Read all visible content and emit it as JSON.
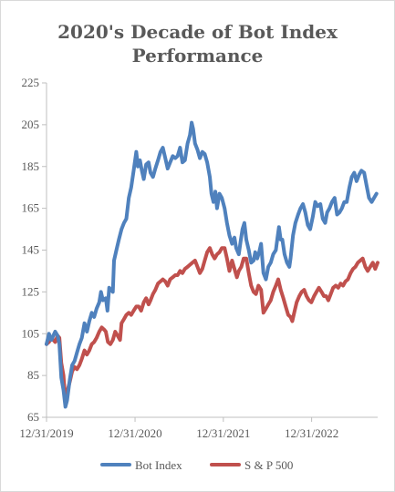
{
  "chart_data": {
    "type": "line",
    "title_line1": "2020's Decade of Bot Index",
    "title_line2": "Performance",
    "xlabel": "",
    "ylabel": "",
    "ylim": [
      65,
      225
    ],
    "yticks": [
      65,
      85,
      105,
      125,
      145,
      165,
      185,
      205,
      225
    ],
    "x_tick_labels": [
      "12/31/2019",
      "12/31/2020",
      "12/31/2021",
      "12/31/2022"
    ],
    "x_tick_dates": [
      "2019-12-31",
      "2020-12-31",
      "2021-12-31",
      "2022-12-31"
    ],
    "x_range": [
      "2019-12-31",
      "2023-09-30"
    ],
    "legend_position": "bottom",
    "grid": false,
    "series": [
      {
        "name": "Bot Index",
        "color": "#4f81bd",
        "points": [
          [
            "2019-12-31",
            100
          ],
          [
            "2020-01-10",
            105
          ],
          [
            "2020-01-20",
            102
          ],
          [
            "2020-02-05",
            106
          ],
          [
            "2020-02-15",
            104
          ],
          [
            "2020-02-22",
            100
          ],
          [
            "2020-03-01",
            84
          ],
          [
            "2020-03-10",
            78
          ],
          [
            "2020-03-18",
            70
          ],
          [
            "2020-03-25",
            73
          ],
          [
            "2020-04-05",
            83
          ],
          [
            "2020-04-15",
            90
          ],
          [
            "2020-04-25",
            92
          ],
          [
            "2020-05-05",
            96
          ],
          [
            "2020-05-15",
            100
          ],
          [
            "2020-05-25",
            103
          ],
          [
            "2020-06-05",
            110
          ],
          [
            "2020-06-15",
            106
          ],
          [
            "2020-06-25",
            111
          ],
          [
            "2020-07-05",
            115
          ],
          [
            "2020-07-15",
            113
          ],
          [
            "2020-07-25",
            117
          ],
          [
            "2020-08-05",
            120
          ],
          [
            "2020-08-12",
            125
          ],
          [
            "2020-08-20",
            121
          ],
          [
            "2020-09-01",
            122
          ],
          [
            "2020-09-08",
            116
          ],
          [
            "2020-09-15",
            127
          ],
          [
            "2020-09-22",
            126
          ],
          [
            "2020-09-30",
            125
          ],
          [
            "2020-10-05",
            140
          ],
          [
            "2020-10-15",
            145
          ],
          [
            "2020-10-25",
            150
          ],
          [
            "2020-11-05",
            155
          ],
          [
            "2020-11-15",
            158
          ],
          [
            "2020-11-25",
            160
          ],
          [
            "2020-12-05",
            170
          ],
          [
            "2020-12-15",
            175
          ],
          [
            "2020-12-25",
            183
          ],
          [
            "2021-01-05",
            192
          ],
          [
            "2021-01-12",
            185
          ],
          [
            "2021-01-20",
            188
          ],
          [
            "2021-01-28",
            183
          ],
          [
            "2021-02-05",
            179
          ],
          [
            "2021-02-15",
            186
          ],
          [
            "2021-02-25",
            187
          ],
          [
            "2021-03-05",
            182
          ],
          [
            "2021-03-15",
            180
          ],
          [
            "2021-03-25",
            184
          ],
          [
            "2021-04-05",
            188
          ],
          [
            "2021-04-15",
            192
          ],
          [
            "2021-04-25",
            194
          ],
          [
            "2021-05-05",
            189
          ],
          [
            "2021-05-15",
            184
          ],
          [
            "2021-05-25",
            187
          ],
          [
            "2021-06-05",
            190
          ],
          [
            "2021-06-15",
            189
          ],
          [
            "2021-06-25",
            190
          ],
          [
            "2021-07-05",
            194
          ],
          [
            "2021-07-15",
            187
          ],
          [
            "2021-07-25",
            188
          ],
          [
            "2021-08-05",
            196
          ],
          [
            "2021-08-15",
            200
          ],
          [
            "2021-08-22",
            206
          ],
          [
            "2021-08-28",
            203
          ],
          [
            "2021-09-05",
            196
          ],
          [
            "2021-09-15",
            193
          ],
          [
            "2021-09-25",
            189
          ],
          [
            "2021-10-05",
            192
          ],
          [
            "2021-10-15",
            191
          ],
          [
            "2021-10-25",
            187
          ],
          [
            "2021-11-05",
            180
          ],
          [
            "2021-11-12",
            172
          ],
          [
            "2021-11-20",
            168
          ],
          [
            "2021-11-28",
            173
          ],
          [
            "2021-12-05",
            165
          ],
          [
            "2021-12-15",
            172
          ],
          [
            "2021-12-25",
            170
          ],
          [
            "2022-01-05",
            165
          ],
          [
            "2022-01-15",
            158
          ],
          [
            "2022-01-25",
            152
          ],
          [
            "2022-02-05",
            148
          ],
          [
            "2022-02-15",
            151
          ],
          [
            "2022-02-22",
            146
          ],
          [
            "2022-03-05",
            143
          ],
          [
            "2022-03-12",
            149
          ],
          [
            "2022-03-20",
            155
          ],
          [
            "2022-03-28",
            158
          ],
          [
            "2022-04-05",
            150
          ],
          [
            "2022-04-15",
            145
          ],
          [
            "2022-04-25",
            139
          ],
          [
            "2022-05-05",
            140
          ],
          [
            "2022-05-12",
            144
          ],
          [
            "2022-05-20",
            141
          ],
          [
            "2022-05-28",
            144
          ],
          [
            "2022-06-05",
            148
          ],
          [
            "2022-06-15",
            134
          ],
          [
            "2022-06-25",
            131
          ],
          [
            "2022-07-05",
            137
          ],
          [
            "2022-07-15",
            139
          ],
          [
            "2022-07-25",
            143
          ],
          [
            "2022-08-05",
            145
          ],
          [
            "2022-08-12",
            151
          ],
          [
            "2022-08-18",
            156
          ],
          [
            "2022-08-25",
            150
          ],
          [
            "2022-09-01",
            150
          ],
          [
            "2022-09-10",
            143
          ],
          [
            "2022-09-20",
            139
          ],
          [
            "2022-09-30",
            137
          ],
          [
            "2022-10-05",
            141
          ],
          [
            "2022-10-15",
            152
          ],
          [
            "2022-10-25",
            158
          ],
          [
            "2022-11-05",
            162
          ],
          [
            "2022-11-15",
            165
          ],
          [
            "2022-11-25",
            167
          ],
          [
            "2022-12-05",
            163
          ],
          [
            "2022-12-15",
            157
          ],
          [
            "2022-12-25",
            155
          ],
          [
            "2023-01-05",
            161
          ],
          [
            "2023-01-15",
            168
          ],
          [
            "2023-01-25",
            166
          ],
          [
            "2023-02-05",
            167
          ],
          [
            "2023-02-15",
            160
          ],
          [
            "2023-02-25",
            158
          ],
          [
            "2023-03-05",
            163
          ],
          [
            "2023-03-15",
            165
          ],
          [
            "2023-03-25",
            168
          ],
          [
            "2023-04-05",
            170
          ],
          [
            "2023-04-15",
            162
          ],
          [
            "2023-04-25",
            163
          ],
          [
            "2023-05-05",
            165
          ],
          [
            "2023-05-15",
            168
          ],
          [
            "2023-05-25",
            168
          ],
          [
            "2023-06-05",
            175
          ],
          [
            "2023-06-15",
            180
          ],
          [
            "2023-06-25",
            182
          ],
          [
            "2023-07-05",
            178
          ],
          [
            "2023-07-15",
            181
          ],
          [
            "2023-07-25",
            183
          ],
          [
            "2023-08-05",
            182
          ],
          [
            "2023-08-15",
            176
          ],
          [
            "2023-08-25",
            170
          ],
          [
            "2023-09-05",
            168
          ],
          [
            "2023-09-15",
            170
          ],
          [
            "2023-09-25",
            172
          ]
        ]
      },
      {
        "name": "S & P 500",
        "color": "#c0504d",
        "points": [
          [
            "2019-12-31",
            100
          ],
          [
            "2020-01-10",
            101
          ],
          [
            "2020-01-20",
            103
          ],
          [
            "2020-02-05",
            101
          ],
          [
            "2020-02-15",
            104
          ],
          [
            "2020-02-22",
            103
          ],
          [
            "2020-03-01",
            91
          ],
          [
            "2020-03-10",
            85
          ],
          [
            "2020-03-18",
            72
          ],
          [
            "2020-03-25",
            77
          ],
          [
            "2020-04-05",
            82
          ],
          [
            "2020-04-15",
            87
          ],
          [
            "2020-04-25",
            89
          ],
          [
            "2020-05-05",
            88
          ],
          [
            "2020-05-15",
            90
          ],
          [
            "2020-05-25",
            93
          ],
          [
            "2020-06-05",
            97
          ],
          [
            "2020-06-15",
            95
          ],
          [
            "2020-06-25",
            97
          ],
          [
            "2020-07-05",
            100
          ],
          [
            "2020-07-15",
            101
          ],
          [
            "2020-07-25",
            103
          ],
          [
            "2020-08-05",
            106
          ],
          [
            "2020-08-15",
            108
          ],
          [
            "2020-08-25",
            107
          ],
          [
            "2020-09-01",
            106
          ],
          [
            "2020-09-10",
            101
          ],
          [
            "2020-09-20",
            100
          ],
          [
            "2020-09-30",
            102
          ],
          [
            "2020-10-10",
            106
          ],
          [
            "2020-10-20",
            104
          ],
          [
            "2020-10-30",
            102
          ],
          [
            "2020-11-05",
            110
          ],
          [
            "2020-11-15",
            112
          ],
          [
            "2020-11-25",
            114
          ],
          [
            "2020-12-05",
            115
          ],
          [
            "2020-12-15",
            114
          ],
          [
            "2020-12-25",
            116
          ],
          [
            "2021-01-05",
            118
          ],
          [
            "2021-01-15",
            118
          ],
          [
            "2021-01-25",
            116
          ],
          [
            "2021-02-05",
            120
          ],
          [
            "2021-02-15",
            122
          ],
          [
            "2021-02-25",
            119
          ],
          [
            "2021-03-05",
            121
          ],
          [
            "2021-03-15",
            124
          ],
          [
            "2021-03-25",
            126
          ],
          [
            "2021-04-05",
            129
          ],
          [
            "2021-04-15",
            130
          ],
          [
            "2021-04-25",
            131
          ],
          [
            "2021-05-05",
            130
          ],
          [
            "2021-05-15",
            128
          ],
          [
            "2021-05-25",
            131
          ],
          [
            "2021-06-05",
            132
          ],
          [
            "2021-06-15",
            133
          ],
          [
            "2021-06-25",
            133
          ],
          [
            "2021-07-05",
            135
          ],
          [
            "2021-07-15",
            134
          ],
          [
            "2021-07-25",
            136
          ],
          [
            "2021-08-05",
            137
          ],
          [
            "2021-08-15",
            138
          ],
          [
            "2021-08-25",
            139
          ],
          [
            "2021-09-05",
            140
          ],
          [
            "2021-09-15",
            137
          ],
          [
            "2021-09-25",
            134
          ],
          [
            "2021-10-05",
            136
          ],
          [
            "2021-10-15",
            140
          ],
          [
            "2021-10-25",
            144
          ],
          [
            "2021-11-05",
            146
          ],
          [
            "2021-11-15",
            143
          ],
          [
            "2021-11-25",
            141
          ],
          [
            "2021-12-05",
            143
          ],
          [
            "2021-12-15",
            144
          ],
          [
            "2021-12-25",
            146
          ],
          [
            "2022-01-05",
            146
          ],
          [
            "2022-01-15",
            141
          ],
          [
            "2022-01-25",
            135
          ],
          [
            "2022-02-05",
            140
          ],
          [
            "2022-02-15",
            136
          ],
          [
            "2022-02-25",
            132
          ],
          [
            "2022-03-05",
            135
          ],
          [
            "2022-03-15",
            137
          ],
          [
            "2022-03-25",
            141
          ],
          [
            "2022-04-05",
            141
          ],
          [
            "2022-04-15",
            134
          ],
          [
            "2022-04-25",
            128
          ],
          [
            "2022-05-05",
            125
          ],
          [
            "2022-05-15",
            124
          ],
          [
            "2022-05-25",
            128
          ],
          [
            "2022-06-05",
            126
          ],
          [
            "2022-06-15",
            115
          ],
          [
            "2022-06-25",
            117
          ],
          [
            "2022-07-05",
            119
          ],
          [
            "2022-07-15",
            121
          ],
          [
            "2022-07-25",
            125
          ],
          [
            "2022-08-05",
            128
          ],
          [
            "2022-08-15",
            131
          ],
          [
            "2022-08-25",
            126
          ],
          [
            "2022-09-05",
            122
          ],
          [
            "2022-09-15",
            118
          ],
          [
            "2022-09-25",
            114
          ],
          [
            "2022-10-05",
            113
          ],
          [
            "2022-10-12",
            111
          ],
          [
            "2022-10-20",
            115
          ],
          [
            "2022-10-30",
            120
          ],
          [
            "2022-11-10",
            123
          ],
          [
            "2022-11-20",
            125
          ],
          [
            "2022-11-30",
            126
          ],
          [
            "2022-12-10",
            123
          ],
          [
            "2022-12-20",
            121
          ],
          [
            "2022-12-30",
            120
          ],
          [
            "2023-01-10",
            123
          ],
          [
            "2023-01-20",
            125
          ],
          [
            "2023-01-30",
            127
          ],
          [
            "2023-02-10",
            125
          ],
          [
            "2023-02-20",
            123
          ],
          [
            "2023-03-01",
            123
          ],
          [
            "2023-03-10",
            121
          ],
          [
            "2023-03-20",
            124
          ],
          [
            "2023-03-30",
            127
          ],
          [
            "2023-04-10",
            128
          ],
          [
            "2023-04-20",
            127
          ],
          [
            "2023-04-30",
            129
          ],
          [
            "2023-05-10",
            128
          ],
          [
            "2023-05-20",
            130
          ],
          [
            "2023-05-30",
            131
          ],
          [
            "2023-06-10",
            134
          ],
          [
            "2023-06-20",
            136
          ],
          [
            "2023-06-30",
            137
          ],
          [
            "2023-07-10",
            139
          ],
          [
            "2023-07-20",
            140
          ],
          [
            "2023-07-30",
            141
          ],
          [
            "2023-08-10",
            137
          ],
          [
            "2023-08-20",
            135
          ],
          [
            "2023-08-30",
            137
          ],
          [
            "2023-09-10",
            139
          ],
          [
            "2023-09-20",
            136
          ],
          [
            "2023-09-30",
            139
          ]
        ]
      }
    ]
  }
}
